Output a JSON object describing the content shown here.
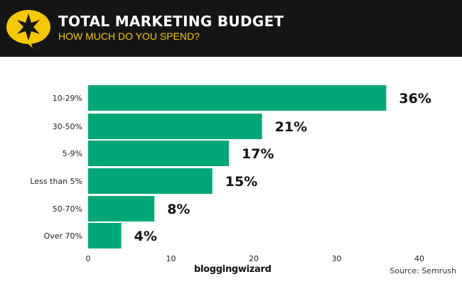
{
  "header": {
    "title": "TOTAL MARKETING BUDGET",
    "subtitle": "HOW MUCH DO YOU SPEND?"
  },
  "footer": {
    "brand": "bloggingwizard",
    "source": "Source:  Semrush"
  },
  "colors": {
    "bar": "#00a878",
    "header_bg": "#151515",
    "accent": "#f5c800"
  },
  "chart_data": {
    "type": "bar",
    "orientation": "horizontal",
    "categories": [
      "10-29%",
      "30-50%",
      "5-9%",
      "Less than 5%",
      "50-70%",
      "Over 70%"
    ],
    "values": [
      36,
      21,
      17,
      15,
      8,
      4
    ],
    "labels": [
      "36%",
      "21%",
      "17%",
      "15%",
      "8%",
      "4%"
    ],
    "xlim": [
      0,
      40
    ],
    "xticks": [
      "0",
      "10",
      "20",
      "30",
      "40"
    ],
    "grid": false
  }
}
